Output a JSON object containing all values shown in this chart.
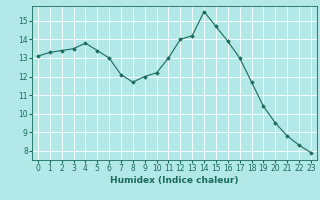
{
  "x": [
    0,
    1,
    2,
    3,
    4,
    5,
    6,
    7,
    8,
    9,
    10,
    11,
    12,
    13,
    14,
    15,
    16,
    17,
    18,
    19,
    20,
    21,
    22,
    23
  ],
  "y": [
    13.1,
    13.3,
    13.4,
    13.5,
    13.8,
    13.4,
    13.0,
    12.1,
    11.7,
    12.0,
    12.2,
    13.0,
    14.0,
    14.2,
    15.5,
    14.7,
    13.9,
    13.0,
    11.7,
    10.4,
    9.5,
    8.8,
    8.3,
    7.9
  ],
  "xlabel": "Humidex (Indice chaleur)",
  "ylim": [
    7.5,
    15.8
  ],
  "xlim": [
    -0.5,
    23.5
  ],
  "yticks": [
    8,
    9,
    10,
    11,
    12,
    13,
    14,
    15
  ],
  "xticks": [
    0,
    1,
    2,
    3,
    4,
    5,
    6,
    7,
    8,
    9,
    10,
    11,
    12,
    13,
    14,
    15,
    16,
    17,
    18,
    19,
    20,
    21,
    22,
    23
  ],
  "line_color": "#1a6b5a",
  "marker": "D",
  "marker_size": 1.8,
  "bg_color": "#b2e8e8",
  "grid_color": "#ffffff",
  "grid_minor_color": "#d8f0f0",
  "tick_label_fontsize": 5.5,
  "xlabel_fontsize": 6.5
}
